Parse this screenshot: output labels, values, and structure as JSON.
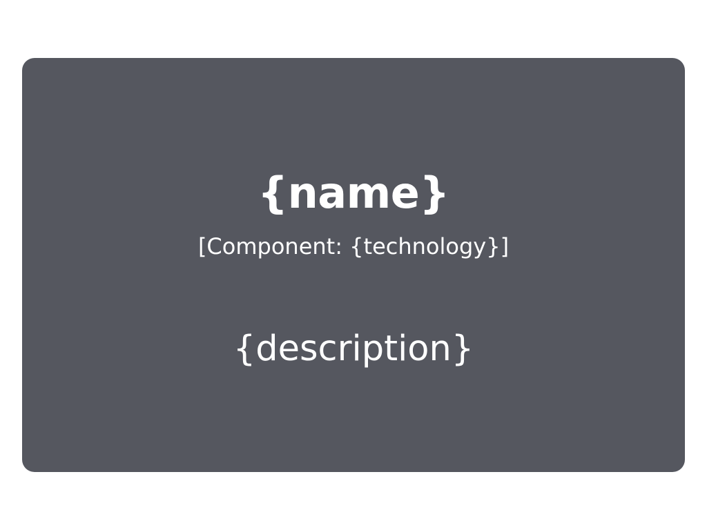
{
  "component": {
    "name": "{name}",
    "technology": "[Component: {technology}]",
    "description": "{description}",
    "fill_color": "#55575f",
    "text_color": "#ffffff"
  }
}
